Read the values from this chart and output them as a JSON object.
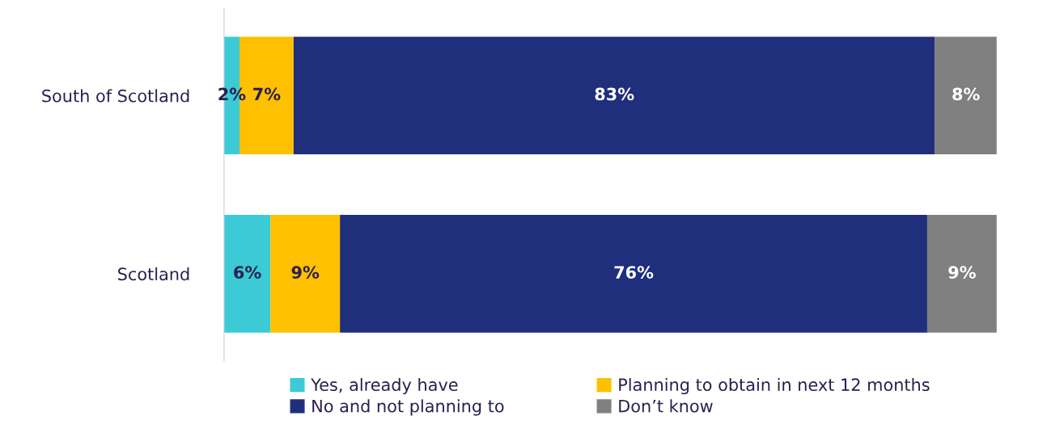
{
  "chart_data": {
    "type": "bar",
    "orientation": "horizontal",
    "stacked": true,
    "categories": [
      "South of Scotland",
      "Scotland"
    ],
    "xlim": [
      0,
      100
    ],
    "tick_labels": "y",
    "grid": false,
    "legend": "bottom",
    "series": [
      {
        "name": "Yes, already have",
        "color": "#3bcad6",
        "values": [
          2,
          6
        ],
        "value_labels": [
          "2%",
          "6%"
        ]
      },
      {
        "name": "Planning to obtain in next 12 months",
        "color": "#ffc000",
        "values": [
          7,
          9
        ],
        "value_labels": [
          "7%",
          "9%"
        ]
      },
      {
        "name": "No and not planning to",
        "color": "#1f2f7b",
        "values": [
          83,
          76
        ],
        "value_labels": [
          "83%",
          "76%"
        ]
      },
      {
        "name": "Don’t know",
        "color": "#808080",
        "values": [
          8,
          9
        ],
        "value_labels": [
          "8%",
          "9%"
        ]
      }
    ]
  }
}
